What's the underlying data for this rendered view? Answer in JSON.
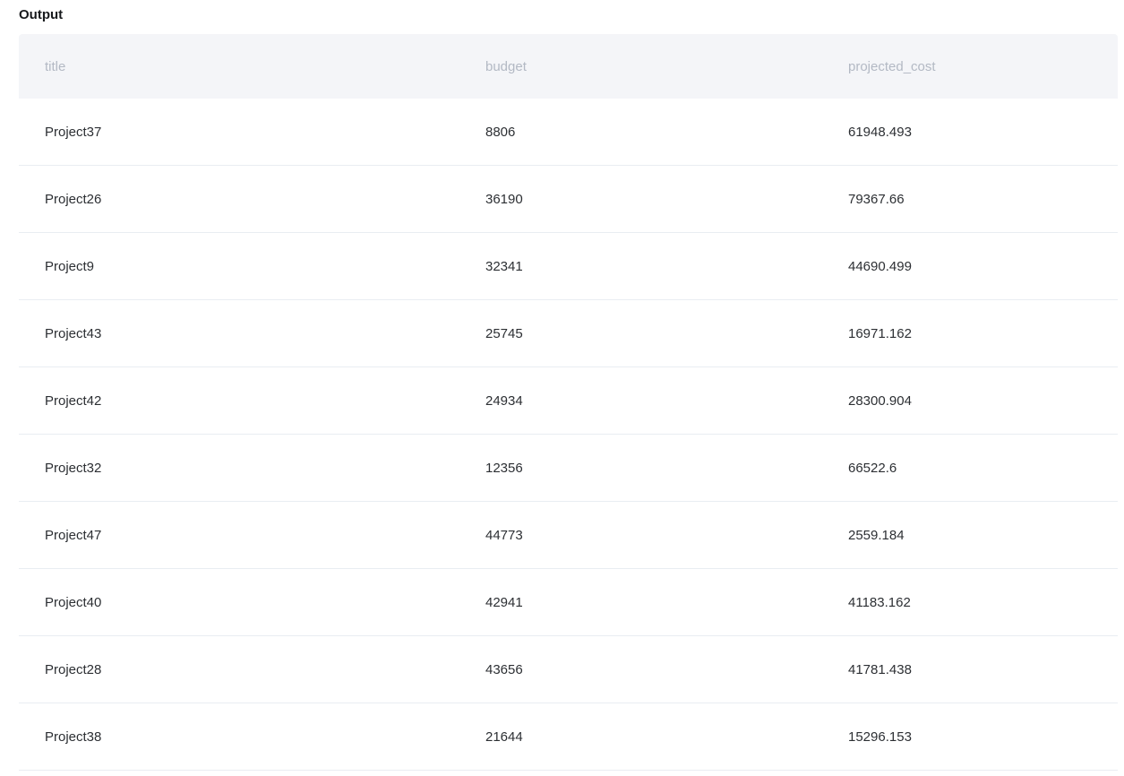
{
  "output_label": "Output",
  "table": {
    "columns": [
      {
        "key": "title",
        "label": "title"
      },
      {
        "key": "budget",
        "label": "budget"
      },
      {
        "key": "projected_cost",
        "label": "projected_cost"
      }
    ],
    "rows": [
      {
        "title": "Project37",
        "budget": "8806",
        "projected_cost": "61948.493"
      },
      {
        "title": "Project26",
        "budget": "36190",
        "projected_cost": "79367.66"
      },
      {
        "title": "Project9",
        "budget": "32341",
        "projected_cost": "44690.499"
      },
      {
        "title": "Project43",
        "budget": "25745",
        "projected_cost": "16971.162"
      },
      {
        "title": "Project42",
        "budget": "24934",
        "projected_cost": "28300.904"
      },
      {
        "title": "Project32",
        "budget": "12356",
        "projected_cost": "66522.6"
      },
      {
        "title": "Project47",
        "budget": "44773",
        "projected_cost": "2559.184"
      },
      {
        "title": "Project40",
        "budget": "42941",
        "projected_cost": "41183.162"
      },
      {
        "title": "Project28",
        "budget": "43656",
        "projected_cost": "41781.438"
      },
      {
        "title": "Project38",
        "budget": "21644",
        "projected_cost": "15296.153"
      }
    ],
    "colors": {
      "header_bg": "#f4f5f8",
      "header_text": "#b3b9c4",
      "row_divider": "#e9edf2",
      "body_text": "#2c2f33",
      "heading_text": "#17191c"
    }
  }
}
